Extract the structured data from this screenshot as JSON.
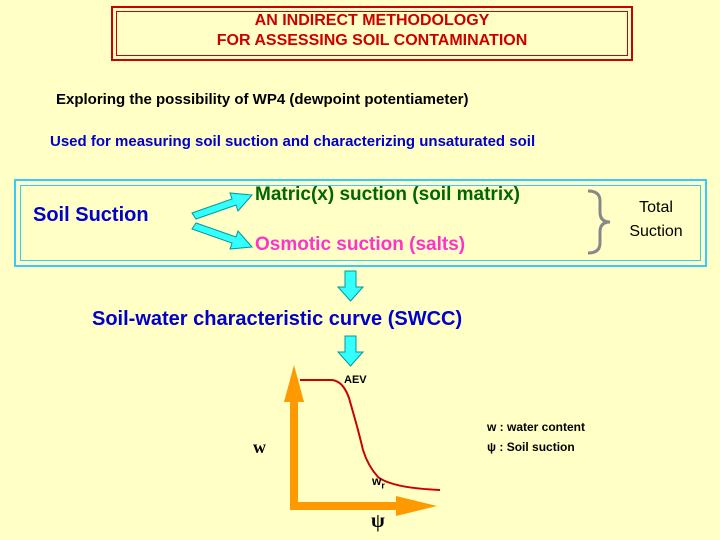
{
  "title": {
    "line1": "AN INDIRECT METHODOLOGY",
    "line2": "FOR ASSESSING SOIL CONTAMINATION"
  },
  "subtitle": "Exploring the possibility of WP4 (dewpoint potentiameter)",
  "usage": "Used for measuring soil suction and characterizing unsaturated soil",
  "suction": {
    "main_label": "Soil Suction",
    "matric_label": "Matric(x) suction (soil matrix)",
    "osmotic_label": "Osmotic suction (salts)",
    "total_line1": "Total",
    "total_line2": "Suction"
  },
  "swcc_label": "Soil-water characteristic curve (SWCC)",
  "graph": {
    "aev_label": "AEV",
    "wr_label": "w",
    "wr_sub": "r",
    "y_axis_label": "w",
    "x_axis_label": "ψ"
  },
  "legend": {
    "w": "w : water content",
    "psi": "ψ : Soil suction"
  },
  "colors": {
    "background": "#FFFFC6",
    "title": "#CC0000",
    "blue_text": "#0000CC",
    "matric": "#006600",
    "osmotic": "#FF33CC",
    "cyan_arrow": "#33FFFF",
    "curve": "#CC0000",
    "axis": "#FF9900"
  }
}
